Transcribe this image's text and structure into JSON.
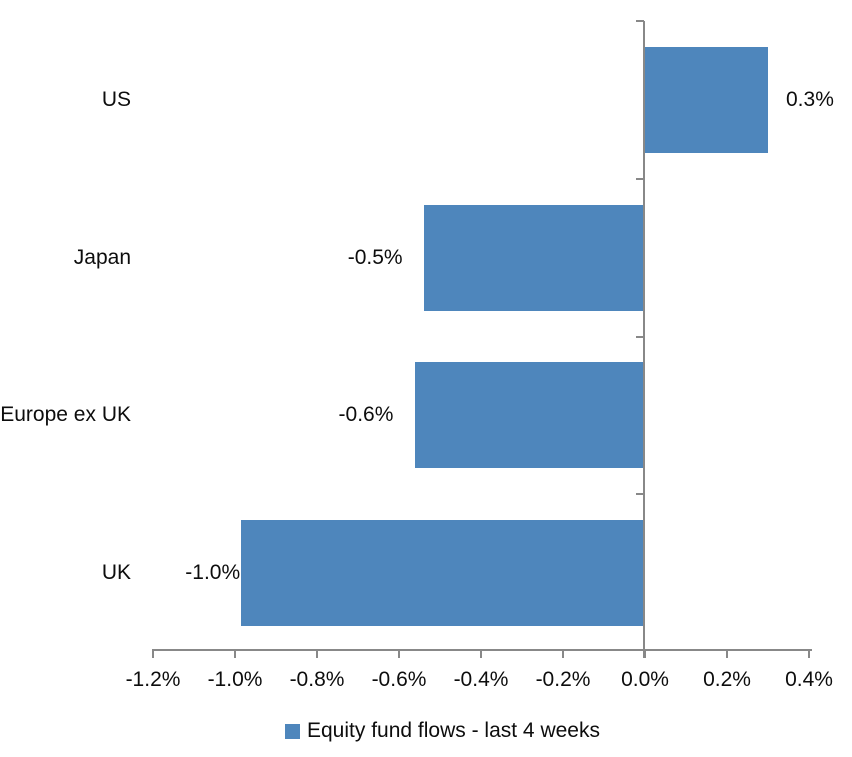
{
  "chart_data": {
    "type": "bar",
    "orientation": "horizontal",
    "title": "",
    "xlabel": "",
    "ylabel": "",
    "categories": [
      "US",
      "Japan",
      "Europe ex UK",
      "UK"
    ],
    "series": [
      {
        "name": "Equity fund flows - last 4 weeks",
        "points": [
          {
            "category": "US",
            "value": 0.3,
            "plot_value": 0.3,
            "label": "0.3%"
          },
          {
            "category": "Japan",
            "value": -0.5,
            "plot_value": -0.54,
            "label": "-0.5%"
          },
          {
            "category": "Europe ex UK",
            "value": -0.6,
            "plot_value": -0.56,
            "label": "-0.6%"
          },
          {
            "category": "UK",
            "value": -1.0,
            "plot_value": -0.985,
            "label": "-1.0%"
          }
        ]
      }
    ],
    "xlim": [
      -1.2,
      0.4
    ],
    "x_tick_step": 0.2,
    "x_ticks": [
      {
        "value": -1.2,
        "label": "-1.2%"
      },
      {
        "value": -1.0,
        "label": "-1.0%"
      },
      {
        "value": -0.8,
        "label": "-0.8%"
      },
      {
        "value": -0.6,
        "label": "-0.6%"
      },
      {
        "value": -0.4,
        "label": "-0.4%"
      },
      {
        "value": -0.2,
        "label": "-0.2%"
      },
      {
        "value": 0.0,
        "label": "0.0%"
      },
      {
        "value": 0.2,
        "label": "0.2%"
      },
      {
        "value": 0.4,
        "label": "0.4%"
      }
    ],
    "grid": false,
    "data_labels": "outside-end",
    "legend": {
      "position": "bottom",
      "entries": [
        {
          "label": "Equity fund flows - last 4 weeks",
          "swatch_color": "#4e86bc"
        }
      ]
    }
  },
  "colors": {
    "bar": "#4e86bc",
    "axis_line": "#888888",
    "text": "#0d0d0d",
    "background": "#ffffff"
  }
}
